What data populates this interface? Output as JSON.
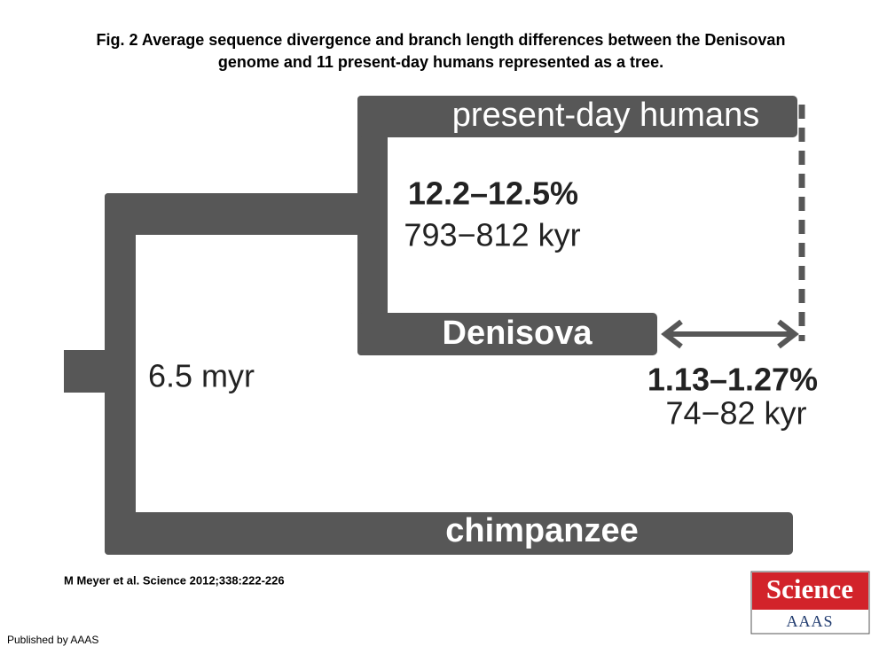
{
  "header": {
    "title_lines": [
      "Fig. 2 Average sequence divergence and branch length differences between the Denisovan",
      "genome and 11 present-day humans represented as a tree."
    ]
  },
  "tree": {
    "present_day": "present-day humans",
    "inner_divergence": "12.2–12.5%",
    "inner_time": "793−812 kyr",
    "denisova": "Denisova",
    "root_time": "6.5 myr",
    "difference_divergence": "1.13–1.27%",
    "difference_time": "74−82 kyr",
    "chimpanzee": "chimpanzee"
  },
  "footer": {
    "citation": "M Meyer et al. Science 2012;338:222-226",
    "publisher": "Published by AAAS",
    "logo_top": "Science",
    "logo_bottom": "AAAS"
  }
}
